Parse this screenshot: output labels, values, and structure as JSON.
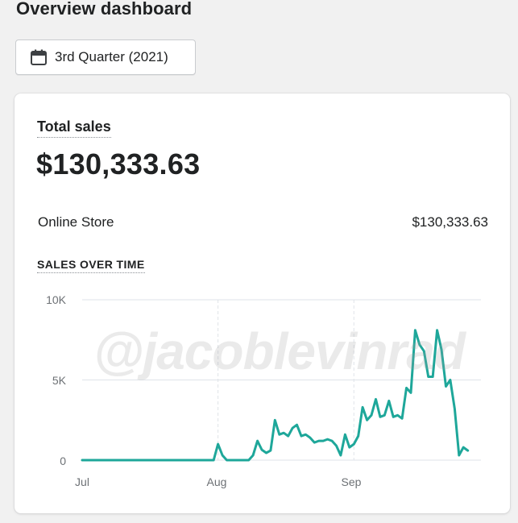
{
  "header": {
    "title": "Overview dashboard"
  },
  "date_picker": {
    "label": "3rd Quarter (2021)",
    "icon": "calendar-icon"
  },
  "total_sales": {
    "title": "Total sales",
    "value": "$130,333.63",
    "breakdown": [
      {
        "label": "Online Store",
        "value": "$130,333.63"
      }
    ]
  },
  "sales_over_time": {
    "label": "SALES OVER TIME"
  },
  "watermark": "@jacoblevinrad",
  "colors": {
    "series": "#1ea79a",
    "grid": "#dfe3e8",
    "page_bg": "#f1f1f1"
  },
  "chart_data": {
    "type": "line",
    "title": "SALES OVER TIME",
    "x_tick_labels": [
      "Jul",
      "Aug",
      "Sep"
    ],
    "y_tick_labels": [
      "0",
      "5K",
      "10K"
    ],
    "ylim": [
      0,
      10000
    ],
    "xlim_days": [
      0,
      91
    ],
    "grid": true,
    "series": [
      {
        "values": [
          0,
          0,
          0,
          0,
          0,
          0,
          0,
          0,
          0,
          0,
          0,
          0,
          0,
          0,
          0,
          0,
          0,
          0,
          0,
          0,
          0,
          0,
          0,
          0,
          0,
          0,
          0,
          0,
          0,
          0,
          0,
          1000,
          300,
          0,
          0,
          0,
          0,
          0,
          0,
          300,
          1200,
          650,
          450,
          600,
          2500,
          1600,
          1700,
          1500,
          2000,
          2200,
          1500,
          1600,
          1400,
          1100,
          1200,
          1200,
          1300,
          1200,
          900,
          300,
          1600,
          800,
          1000,
          1500,
          3300,
          2500,
          2800,
          3800,
          2700,
          2800,
          3700,
          2700,
          2800,
          2600,
          4500,
          4200,
          8100,
          7200,
          6800,
          5200,
          5200,
          8100,
          6900,
          4600,
          5000,
          3200,
          300,
          800,
          600
        ]
      }
    ]
  }
}
